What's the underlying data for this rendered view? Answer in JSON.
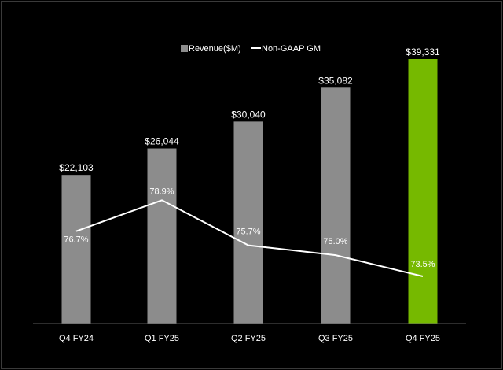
{
  "chart_data": {
    "type": "bar",
    "categories": [
      "Q4 FY24",
      "Q1 FY25",
      "Q2 FY25",
      "Q3 FY25",
      "Q4 FY25"
    ],
    "series": [
      {
        "name": "Revenue($M)",
        "kind": "bar",
        "values": [
          22103,
          26044,
          30040,
          35082,
          39331
        ],
        "labels": [
          "$22,103",
          "$26,044",
          "$30,040",
          "$35,082",
          "$39,331"
        ],
        "colors": [
          "#8c8c8c",
          "#8c8c8c",
          "#8c8c8c",
          "#8c8c8c",
          "#76b900"
        ]
      },
      {
        "name": "Non-GAAP GM",
        "kind": "line",
        "values": [
          76.7,
          78.9,
          75.7,
          75.0,
          73.5
        ],
        "labels": [
          "76.7%",
          "78.9%",
          "75.7%",
          "75.0%",
          "73.5%"
        ],
        "color": "#ffffff"
      }
    ],
    "legend": {
      "position": "top-center"
    },
    "background": "#000000",
    "text_color": "#ffffff",
    "bar_color": "#8c8c8c",
    "highlight_color": "#76b900",
    "grid": false
  }
}
